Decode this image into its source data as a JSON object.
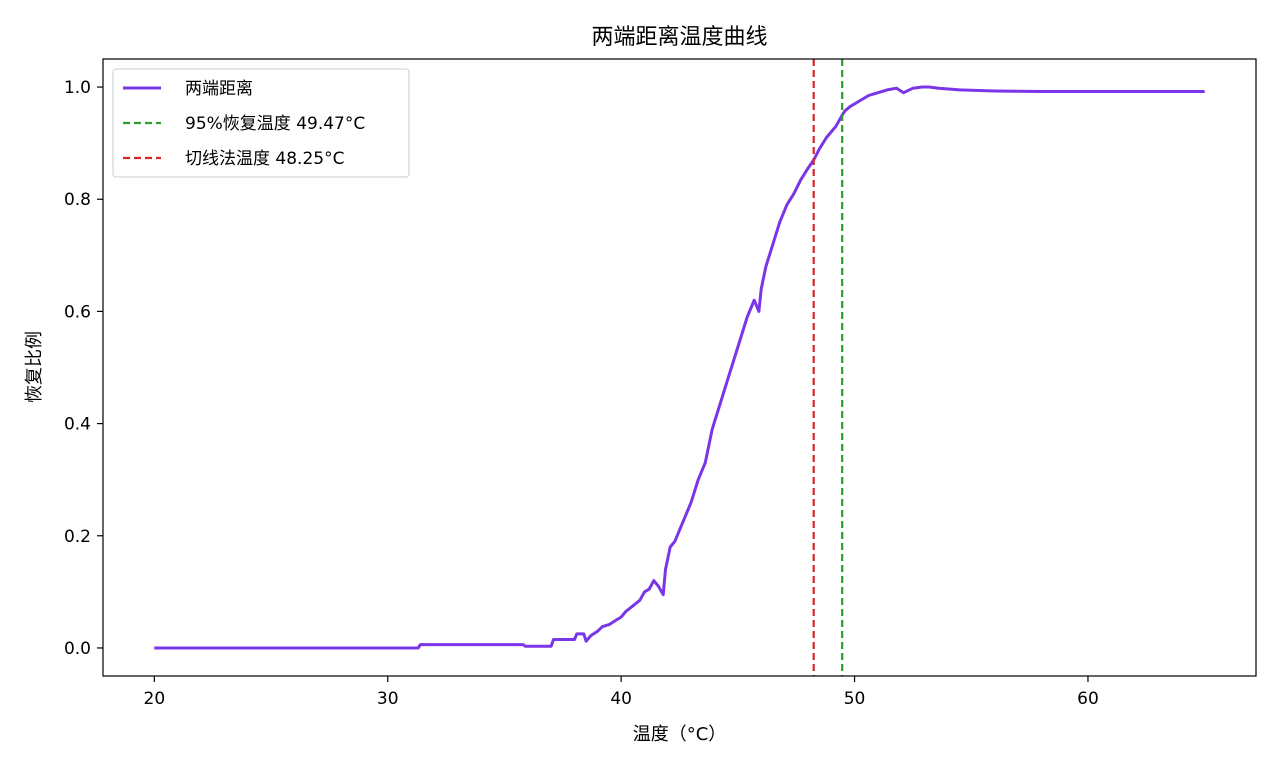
{
  "chart_data": {
    "type": "line",
    "title": "两端距离温度曲线",
    "xlabel": "温度（°C）",
    "ylabel": "恢复比例",
    "xlim": [
      17.8,
      67.2
    ],
    "ylim": [
      -0.05,
      1.05
    ],
    "xticks": [
      20,
      30,
      40,
      50,
      60
    ],
    "yticks": [
      0.0,
      0.2,
      0.4,
      0.6,
      0.8,
      1.0
    ],
    "xtick_labels": [
      "20",
      "30",
      "40",
      "50",
      "60"
    ],
    "ytick_labels": [
      "0.0",
      "0.2",
      "0.4",
      "0.6",
      "0.8",
      "1.0"
    ],
    "grid": false,
    "legend_position": "upper-left",
    "series": [
      {
        "name": "两端距离",
        "color": "#7b35e8",
        "x": [
          20,
          25,
          30,
          31.3,
          31.4,
          33,
          35.8,
          35.9,
          37,
          37.1,
          38,
          38.1,
          38.4,
          38.5,
          38.7,
          39.0,
          39.2,
          39.5,
          39.8,
          40.0,
          40.2,
          40.5,
          40.8,
          41.0,
          41.2,
          41.4,
          41.6,
          41.8,
          41.9,
          42.1,
          42.3,
          42.5,
          42.7,
          43.0,
          43.3,
          43.6,
          43.9,
          44.2,
          44.5,
          44.8,
          45.1,
          45.4,
          45.7,
          45.9,
          46.0,
          46.2,
          46.5,
          46.8,
          47.1,
          47.4,
          47.7,
          48.0,
          48.25,
          48.5,
          48.8,
          49.2,
          49.47,
          49.6,
          49.8,
          50.2,
          50.6,
          51.0,
          51.4,
          51.8,
          52.1,
          52.5,
          52.9,
          53.2,
          53.6,
          54.5,
          56,
          58,
          60,
          62,
          65
        ],
        "values": [
          0.0,
          0.0,
          0.0,
          0.0,
          0.006,
          0.006,
          0.006,
          0.003,
          0.003,
          0.015,
          0.015,
          0.025,
          0.025,
          0.012,
          0.022,
          0.03,
          0.038,
          0.042,
          0.05,
          0.055,
          0.065,
          0.075,
          0.085,
          0.1,
          0.105,
          0.12,
          0.11,
          0.095,
          0.14,
          0.18,
          0.19,
          0.21,
          0.23,
          0.26,
          0.3,
          0.33,
          0.39,
          0.43,
          0.47,
          0.51,
          0.55,
          0.59,
          0.62,
          0.6,
          0.64,
          0.68,
          0.72,
          0.76,
          0.79,
          0.81,
          0.835,
          0.855,
          0.87,
          0.89,
          0.91,
          0.93,
          0.95,
          0.958,
          0.965,
          0.975,
          0.985,
          0.99,
          0.995,
          0.998,
          0.99,
          0.998,
          1.0,
          1.0,
          0.998,
          0.995,
          0.993,
          0.992,
          0.992,
          0.992,
          0.992
        ]
      },
      {
        "name": "95%恢复温度 49.47°C",
        "color": "#2ca02c",
        "style": "dashed",
        "vline": 49.47
      },
      {
        "name": "切线法温度 48.25°C",
        "color": "#d62728",
        "style": "dashed",
        "vline": 48.25
      }
    ]
  }
}
